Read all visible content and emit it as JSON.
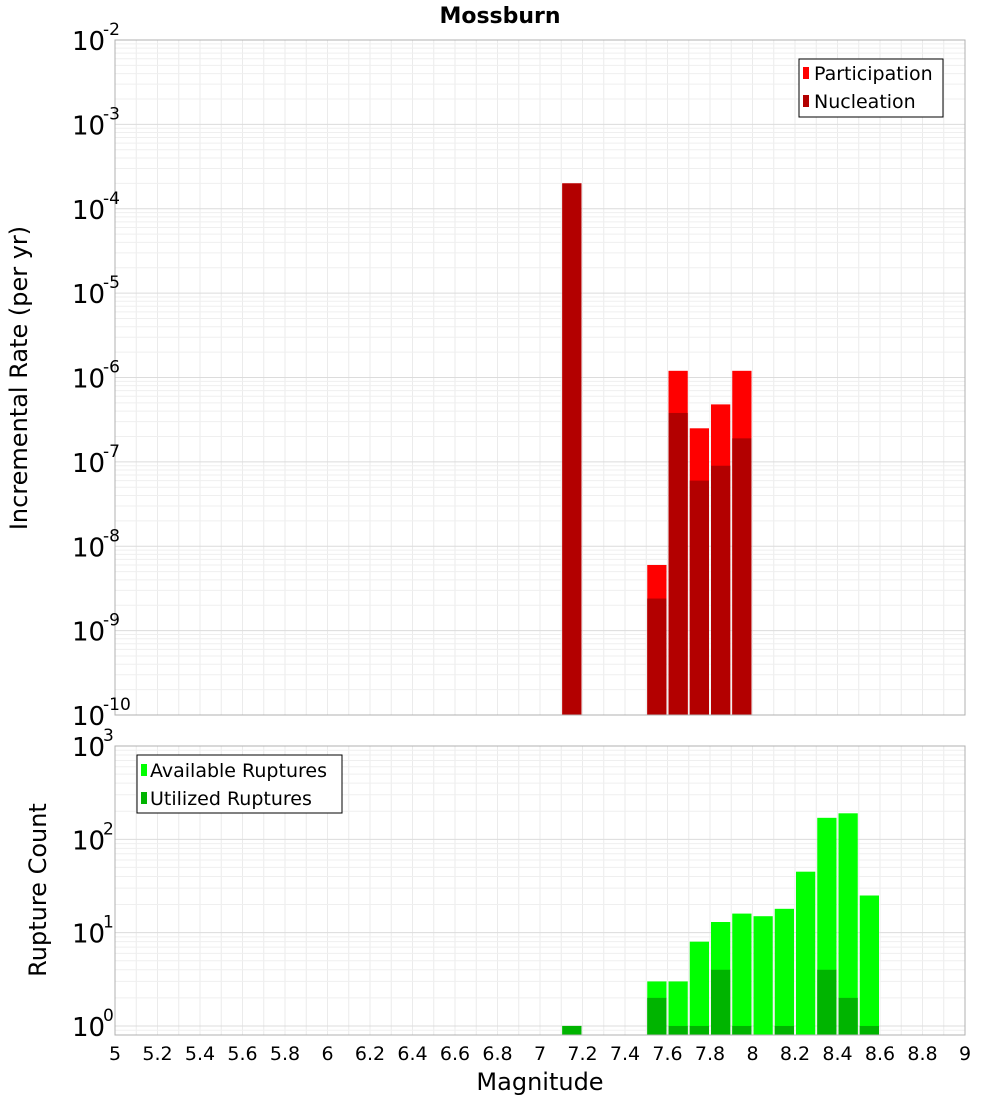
{
  "chart_data": {
    "type": "bar",
    "title": "Mossburn",
    "xlabel": "Magnitude",
    "xlim": [
      5,
      9
    ],
    "xticks": [
      "5",
      "5.2",
      "5.4",
      "5.6",
      "5.8",
      "6",
      "6.2",
      "6.4",
      "6.6",
      "6.8",
      "7",
      "7.2",
      "7.4",
      "7.6",
      "7.8",
      "8",
      "8.2",
      "8.4",
      "8.6",
      "8.8",
      "9"
    ],
    "bin_width": 0.1,
    "panels": [
      {
        "ylabel": "Incremental Rate (per yr)",
        "yscale": "log",
        "ylim": [
          1e-10,
          0.01
        ],
        "ytick_exponents": [
          "-10",
          "-9",
          "-8",
          "-7",
          "-6",
          "-5",
          "-4",
          "-3",
          "-2"
        ],
        "legend_position": "top-right",
        "grid": true,
        "series": [
          {
            "name": "Participation",
            "color": "#ff0000",
            "x": [
              7.15,
              7.55,
              7.65,
              7.75,
              7.85,
              7.95
            ],
            "values": [
              0.0002,
              6e-09,
              1.2e-06,
              2.5e-07,
              4.8e-07,
              1.2e-06
            ]
          },
          {
            "name": "Nucleation",
            "color": "#b30000",
            "x": [
              7.15,
              7.55,
              7.65,
              7.75,
              7.85,
              7.95
            ],
            "values": [
              0.0002,
              2.4e-09,
              3.8e-07,
              6e-08,
              9e-08,
              1.9e-07
            ]
          }
        ]
      },
      {
        "ylabel": "Rupture Count",
        "yscale": "log",
        "ylim": [
          0.8,
          1000
        ],
        "ytick_exponents": [
          "0",
          "1",
          "2",
          "3"
        ],
        "legend_position": "top-left",
        "grid": true,
        "series": [
          {
            "name": "Available Ruptures",
            "color": "#00ff00",
            "x": [
              7.15,
              7.55,
              7.65,
              7.75,
              7.85,
              7.95,
              8.05,
              8.15,
              8.25,
              8.35,
              8.45,
              8.55
            ],
            "values": [
              1,
              3,
              3,
              8,
              13,
              16,
              15,
              18,
              45,
              170,
              190,
              25
            ]
          },
          {
            "name": "Utilized Ruptures",
            "color": "#00b400",
            "x": [
              7.15,
              7.55,
              7.65,
              7.75,
              7.85,
              7.95,
              8.05,
              8.15,
              8.25,
              8.35,
              8.45,
              8.55
            ],
            "values": [
              1,
              2,
              1,
              1,
              4,
              1,
              0,
              1,
              0,
              4,
              2,
              1
            ]
          }
        ]
      }
    ]
  }
}
